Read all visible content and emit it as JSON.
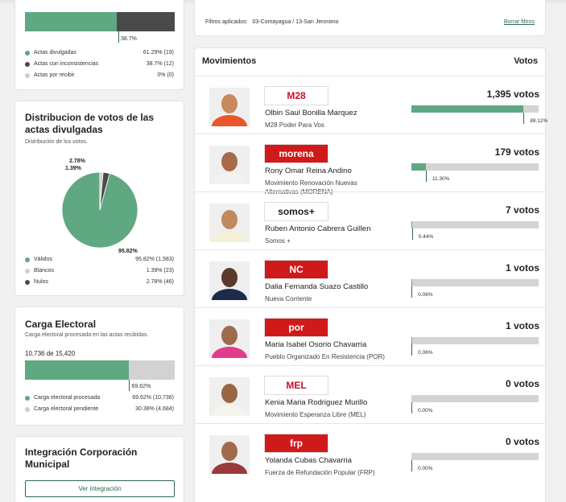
{
  "colors": {
    "green": "#5fa882",
    "dark": "#4a4a4a",
    "light": "#d2d2d2",
    "accent": "#2c6b4c"
  },
  "actas": {
    "bar_divulgadas": 0.6129,
    "bar_label": "38.7%",
    "legend": [
      {
        "label": "Actas divulgadas",
        "value": "61.29% (19)",
        "color": "#5fa882"
      },
      {
        "label": "Actas con inconsistencias",
        "value": "38.7% (12)",
        "color": "#4a4a4a"
      },
      {
        "label": "Actas por recibir",
        "value": "0% (0)",
        "color": "#cfcfcf"
      }
    ]
  },
  "distribucion": {
    "title": "Distribucion de votos de las actas divulgadas",
    "subtitle": "Distribución de los votos.",
    "pie_labels": {
      "nulos": "2.78%",
      "blancos": "1.39%",
      "validos": "95.82%"
    },
    "legend": [
      {
        "label": "Válidos",
        "value": "95.82% (1,583)",
        "color": "#5fa882"
      },
      {
        "label": "Blancos",
        "value": "1.39% (23)",
        "color": "#cfcfcf"
      },
      {
        "label": "Nulos",
        "value": "2.78% (46)",
        "color": "#4a4a4a"
      }
    ],
    "chart_data": {
      "type": "pie",
      "categories": [
        "Válidos",
        "Blancos",
        "Nulos"
      ],
      "values": [
        95.82,
        1.39,
        2.78
      ]
    }
  },
  "carga": {
    "title": "Carga Electoral",
    "subtitle": "Carga electoral procesada en las actas recibidas.",
    "count": "10,736 de 15,420",
    "fraction": 0.6962,
    "bar_label": "69.62%",
    "legend": [
      {
        "label": "Carga electoral procesada",
        "value": "69.62% (10,736)",
        "color": "#5fa882"
      },
      {
        "label": "Carga electoral pendiente",
        "value": "30.38% (4,684)",
        "color": "#cfcfcf"
      }
    ]
  },
  "integracion": {
    "title": "Integración Corporación Municipal",
    "button": "Ver integración"
  },
  "filters": {
    "label": "Filtros aplicados:",
    "value": "03-Comayagua / 13-San Jeronimo",
    "clear": "Borrar filtros"
  },
  "movimientos": {
    "title": "Movimientos",
    "votes_header": "Votos",
    "candidates": [
      {
        "name": "Olbin Saul Bonilla Marquez",
        "party": "M28 Poder Para Vos",
        "logo": "M28",
        "logo_color": "#c8102e",
        "logo_bg": "#ffffff",
        "votes": "1,395 votos",
        "fraction": 0.8812,
        "pct": "88.12%",
        "shirt": "#e8562a",
        "skin": "#c9885e"
      },
      {
        "name": "Rony Omar Reina Andino",
        "party": "Movimiento Renovación Nuevas Alternativas (MORENA)",
        "logo": "morena",
        "logo_color": "#ffffff",
        "logo_bg": "#d01a1a",
        "votes": "179 votos",
        "fraction": 0.113,
        "pct": "11.30%",
        "shirt": "#f2f2f2",
        "skin": "#a86a48"
      },
      {
        "name": "Ruben Antonio Cabrera Guillen",
        "party": "Somos +",
        "logo": "somos+",
        "logo_color": "#222222",
        "logo_bg": "#ffffff",
        "votes": "7 votos",
        "fraction": 0.0044,
        "pct": "0.44%",
        "shirt": "#f4f1d8",
        "skin": "#c08a60"
      },
      {
        "name": "Dalia Fernanda Suazo Castillo",
        "party": "Nueva Corriente",
        "logo": "NC",
        "logo_color": "#ffffff",
        "logo_bg": "#d01a1a",
        "votes": "1 votos",
        "fraction": 0.0006,
        "pct": "0.06%",
        "shirt": "#1d2a4a",
        "skin": "#5a3a2a"
      },
      {
        "name": "Maria Isabel Osorio Chavarria",
        "party": "Pueblo Organizado En Resistencia (POR)",
        "logo": "por",
        "logo_color": "#ffffff",
        "logo_bg": "#d01a1a",
        "votes": "1 votos",
        "fraction": 0.0006,
        "pct": "0.06%",
        "shirt": "#e23d8c",
        "skin": "#9c6a4c"
      },
      {
        "name": "Kenia Maria Rodriguez Murillo",
        "party": "Movimiento Esperanza Libre (MEL)",
        "logo": "MEL",
        "logo_color": "#c8102e",
        "logo_bg": "#ffffff",
        "votes": "0 votos",
        "fraction": 0,
        "pct": "0.00%",
        "shirt": "#f5f5f0",
        "skin": "#9a6646"
      },
      {
        "name": "Yolanda Cubas Chavarria",
        "party": "Fuerza de Refundación Popular (FRP)",
        "logo": "frp",
        "logo_color": "#ffffff",
        "logo_bg": "#d01a1a",
        "votes": "0 votos",
        "fraction": 0,
        "pct": "0.00%",
        "shirt": "#9a3a3a",
        "skin": "#a06a4e"
      }
    ]
  }
}
